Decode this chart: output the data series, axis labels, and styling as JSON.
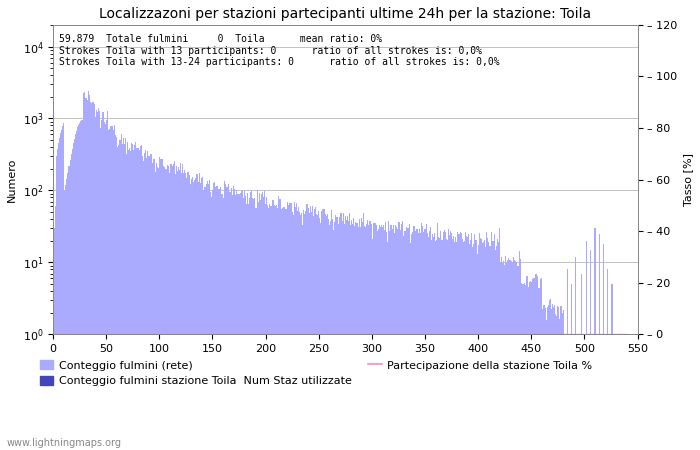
{
  "title": "Localizzazoni per stazioni partecipanti ultime 24h per la stazione: Toila",
  "ylabel_left": "Numero",
  "ylabel_right": "Tasso [%]",
  "annotation_lines": [
    "59.879  Totale fulmini     0  Toila      mean ratio: 0%",
    "Strokes Toila with 13 participants: 0      ratio of all strokes is: 0,0%",
    "Strokes Toila with 13-24 participants: 0      ratio of all strokes is: 0,0%"
  ],
  "watermark": "www.lightningmaps.org",
  "bar_color_light": "#aaaaff",
  "bar_color_dark": "#4444bb",
  "line_color": "#ff88cc",
  "grid_color": "#aaaaaa",
  "background_color": "#ffffff",
  "xlim": [
    0,
    550
  ],
  "ylim_right": [
    0,
    120
  ],
  "yticks_right": [
    0,
    20,
    40,
    60,
    80,
    100,
    120
  ],
  "xticks": [
    0,
    50,
    100,
    150,
    200,
    250,
    300,
    350,
    400,
    450,
    500,
    550
  ],
  "legend_labels": [
    "Conteggio fulmini (rete)",
    "Conteggio fulmini stazione Toila",
    "Num Staz utilizzate",
    "Partecipazione della stazione Toila %"
  ],
  "title_fontsize": 10,
  "label_fontsize": 8,
  "tick_fontsize": 8,
  "annotation_fontsize": 7
}
